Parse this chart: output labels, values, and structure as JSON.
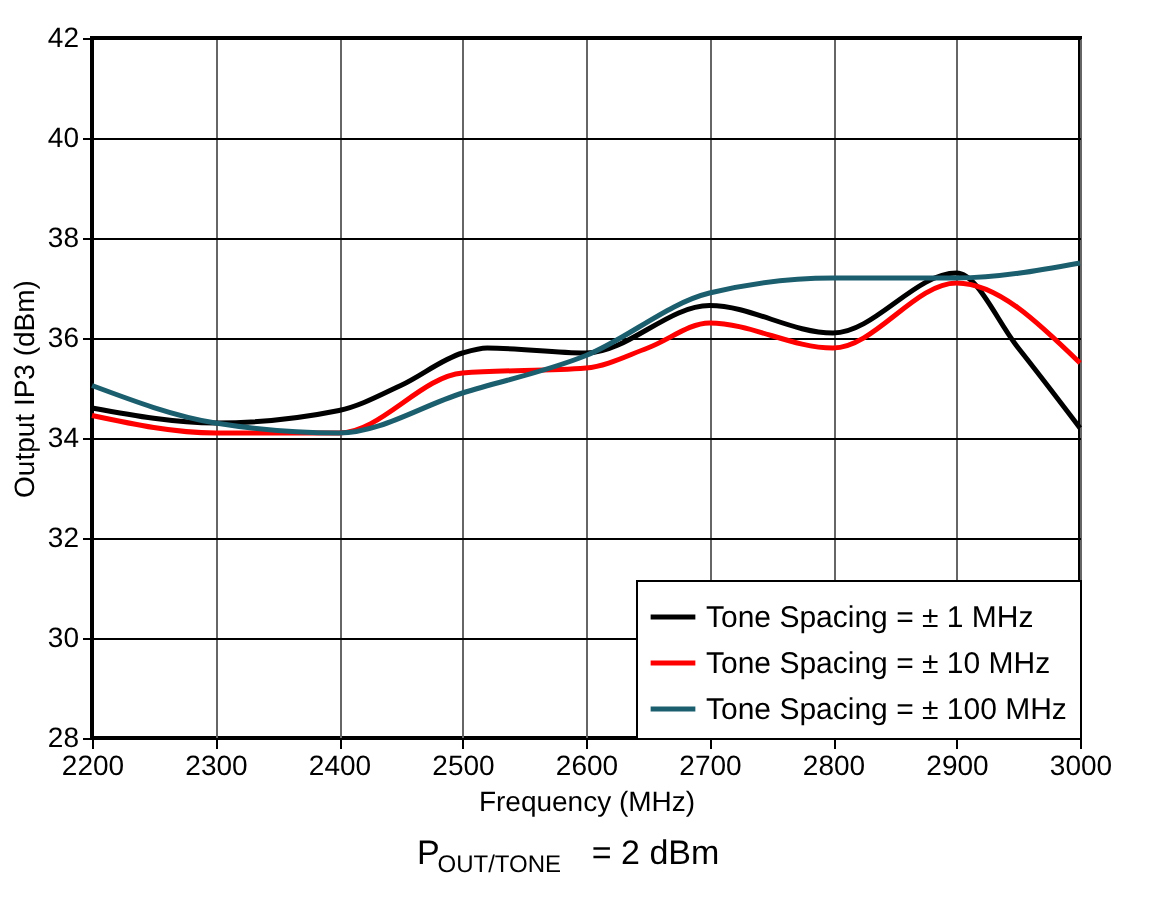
{
  "chart_data": {
    "type": "line",
    "xlabel": "Frequency (MHz)",
    "ylabel": "Output IP3 (dBm)",
    "annotations": [
      "P$_{OUT/TONE}$ = 2 dBm"
    ],
    "x": [
      2200,
      2300,
      2400,
      2450,
      2500,
      2520,
      2600,
      2700,
      2800,
      2900,
      2950,
      3000
    ],
    "series": [
      {
        "name": "Tone Spacing = ± 1 MHz",
        "color": "#000000",
        "values": [
          34.6,
          34.3,
          34.55,
          35.05,
          35.7,
          35.8,
          35.7,
          36.65,
          36.1,
          37.3,
          35.8,
          34.2
        ]
      },
      {
        "name": "Tone Spacing = ± 10 MHz",
        "color": "#ff0000",
        "x": [
          2200,
          2300,
          2400,
          2500,
          2600,
          2650,
          2700,
          2800,
          2900,
          3000
        ],
        "values": [
          34.45,
          34.1,
          34.1,
          35.3,
          35.4,
          35.8,
          36.3,
          35.8,
          37.1,
          35.5
        ]
      },
      {
        "name": "Tone Spacing = ± 100 MHz",
        "color": "#1b5e6e",
        "x": [
          2200,
          2300,
          2400,
          2500,
          2600,
          2700,
          2800,
          2900,
          3000
        ],
        "values": [
          35.05,
          34.3,
          34.1,
          34.9,
          35.65,
          36.9,
          37.2,
          37.2,
          37.5
        ]
      }
    ],
    "xlim": [
      2200,
      3000
    ],
    "xticks": [
      2200,
      2300,
      2400,
      2500,
      2600,
      2700,
      2800,
      2900,
      3000
    ],
    "ylim": [
      28,
      42
    ],
    "yticks": [
      28,
      30,
      32,
      34,
      36,
      38,
      40,
      42
    ],
    "grid": true,
    "legend": "bottom right",
    "marker": "none",
    "line_style": "solid"
  }
}
